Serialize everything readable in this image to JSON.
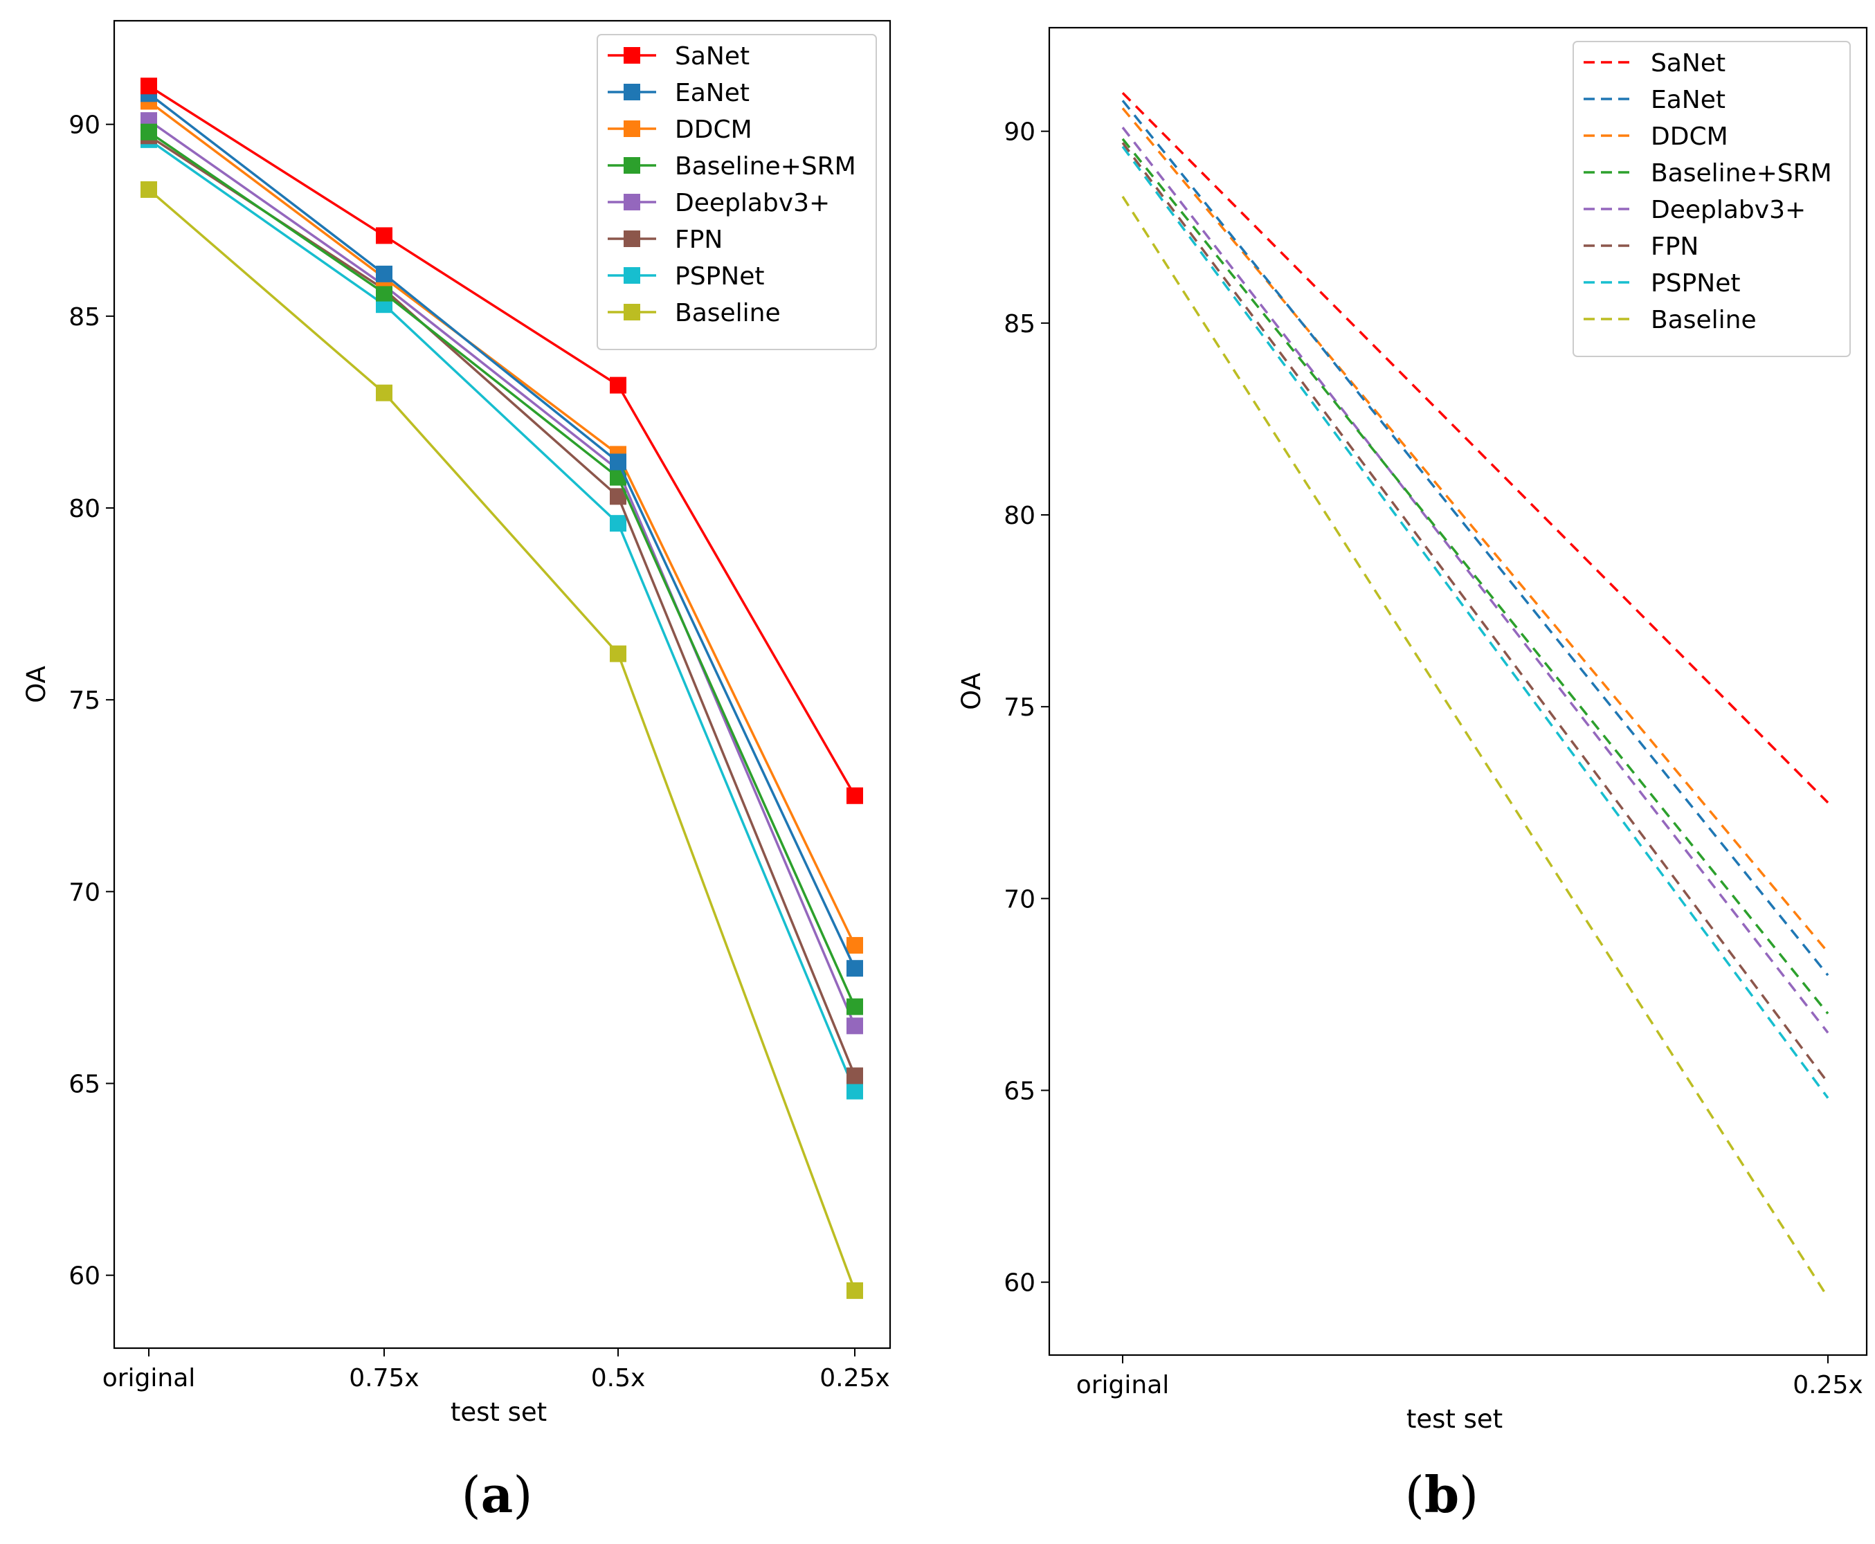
{
  "chart_data": [
    {
      "type": "line",
      "panel": "a",
      "caption_letter": "a",
      "title": "",
      "xlabel": "test set",
      "ylabel": "OA",
      "categories": [
        "original",
        "0.75x",
        "0.5x",
        "0.25x"
      ],
      "ylim": [
        58.1,
        92.7
      ],
      "yticks": [
        60,
        65,
        70,
        75,
        80,
        85,
        90
      ],
      "line_style": "solid",
      "markers": "square",
      "grid": false,
      "legend_position": "top-right",
      "series": [
        {
          "name": "SaNet",
          "color": "#ff0000",
          "values": [
            91.0,
            87.1,
            83.2,
            72.5
          ]
        },
        {
          "name": "EaNet",
          "color": "#1f77b4",
          "values": [
            90.8,
            86.1,
            81.2,
            68.0
          ]
        },
        {
          "name": "DDCM",
          "color": "#ff7f0e",
          "values": [
            90.6,
            86.0,
            81.4,
            68.6
          ]
        },
        {
          "name": "Baseline+SRM",
          "color": "#2ca02c",
          "values": [
            89.8,
            85.6,
            80.8,
            67.0
          ]
        },
        {
          "name": "Deeplabv3+",
          "color": "#9467bd",
          "values": [
            90.1,
            85.8,
            81.0,
            66.5
          ]
        },
        {
          "name": "FPN",
          "color": "#8c564b",
          "values": [
            89.7,
            85.7,
            80.3,
            65.2
          ]
        },
        {
          "name": "PSPNet",
          "color": "#17becf",
          "values": [
            89.6,
            85.3,
            79.6,
            64.8
          ]
        },
        {
          "name": "Baseline",
          "color": "#bcbd22",
          "values": [
            88.3,
            83.0,
            76.2,
            59.6
          ]
        }
      ]
    },
    {
      "type": "line",
      "panel": "b",
      "caption_letter": "b",
      "title": "",
      "xlabel": "test set",
      "ylabel": "OA",
      "categories": [
        "original",
        "0.25x"
      ],
      "ylim": [
        58.1,
        92.7
      ],
      "yticks": [
        60,
        65,
        70,
        75,
        80,
        85,
        90
      ],
      "line_style": "dashed",
      "markers": "none",
      "grid": false,
      "legend_position": "top-right",
      "series": [
        {
          "name": "SaNet",
          "color": "#ff0000",
          "values": [
            91.0,
            72.5
          ]
        },
        {
          "name": "EaNet",
          "color": "#1f77b4",
          "values": [
            90.8,
            68.0
          ]
        },
        {
          "name": "DDCM",
          "color": "#ff7f0e",
          "values": [
            90.6,
            68.6
          ]
        },
        {
          "name": "Baseline+SRM",
          "color": "#2ca02c",
          "values": [
            89.8,
            67.0
          ]
        },
        {
          "name": "Deeplabv3+",
          "color": "#9467bd",
          "values": [
            90.1,
            66.5
          ]
        },
        {
          "name": "FPN",
          "color": "#8c564b",
          "values": [
            89.7,
            65.2
          ]
        },
        {
          "name": "PSPNet",
          "color": "#17becf",
          "values": [
            89.6,
            64.8
          ]
        },
        {
          "name": "Baseline",
          "color": "#bcbd22",
          "values": [
            88.3,
            59.6
          ]
        }
      ]
    }
  ]
}
